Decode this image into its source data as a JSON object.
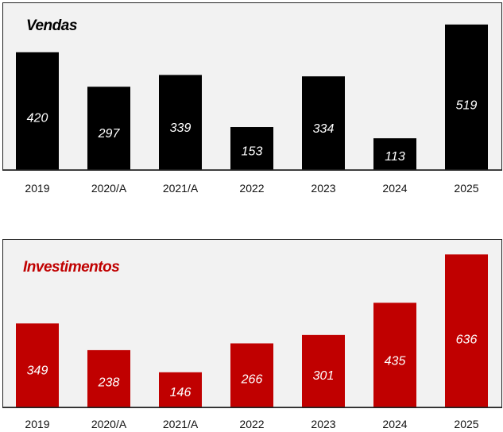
{
  "chart_data": [
    {
      "type": "bar",
      "title": "Vendas",
      "categories": [
        "2019",
        "2020/A",
        "2021/A",
        "2022",
        "2023",
        "2024",
        "2025"
      ],
      "values": [
        420,
        297,
        339,
        153,
        334,
        113,
        519
      ],
      "ylim": [
        0,
        598
      ],
      "xlabel": "",
      "ylabel": "",
      "grid": false,
      "bar_color": "#000000",
      "title_color": "#000000"
    },
    {
      "type": "bar",
      "title": "Investimentos",
      "categories": [
        "2019",
        "2020/A",
        "2021/A",
        "2022",
        "2023",
        "2024",
        "2025"
      ],
      "values": [
        349,
        238,
        146,
        266,
        301,
        435,
        636
      ],
      "ylim": [
        0,
        700
      ],
      "xlabel": "",
      "ylabel": "",
      "grid": false,
      "bar_color": "#C00000",
      "title_color": "#C00000"
    }
  ]
}
